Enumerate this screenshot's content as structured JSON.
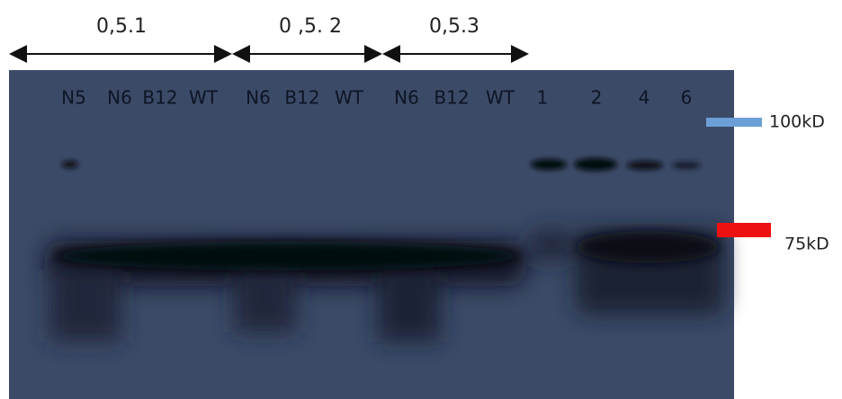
{
  "groups": [
    "0,5.1",
    "0 ,5. 2",
    "0,5.3"
  ],
  "lanes": [
    "N5",
    "N6",
    "B12",
    "WT",
    "N6",
    "B12",
    "WT",
    "N6",
    "B12",
    "WT",
    "1",
    "2",
    "4",
    "6"
  ],
  "markers": [
    "100kD",
    "75kD"
  ]
}
